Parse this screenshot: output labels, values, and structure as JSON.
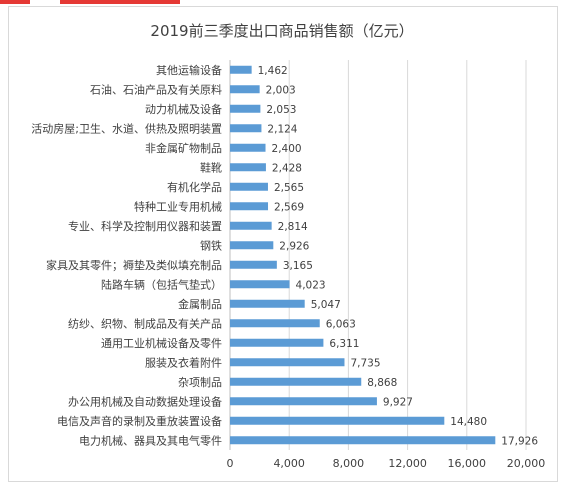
{
  "chart_data": {
    "type": "bar",
    "orientation": "horizontal",
    "title": "2019前三季度出口商品销售额（亿元）",
    "categories": [
      "其他运输设备",
      "石油、石油产品及有关原料",
      "动力机械及设备",
      "活动房屋;卫生、水道、供热及照明装置",
      "非金属矿物制品",
      "鞋靴",
      "有机化学品",
      "特种工业专用机械",
      "专业、科学及控制用仪器和装置",
      "钢铁",
      "家具及其零件；褥垫及类似填充制品",
      "陆路车辆（包括气垫式）",
      "金属制品",
      "纺纱、织物、制成品及有关产品",
      "通用工业机械设备及零件",
      "服装及衣着附件",
      "杂项制品",
      "办公用机械及自动数据处理设备",
      "电信及声音的录制及重放装置设备",
      "电力机械、器具及其电气零件"
    ],
    "values": [
      1462,
      2003,
      2053,
      2124,
      2400,
      2428,
      2565,
      2569,
      2814,
      2926,
      3165,
      4023,
      5047,
      6063,
      6311,
      7735,
      8868,
      9927,
      14480,
      17926
    ],
    "value_labels": [
      "1,462",
      "2,003",
      "2,053",
      "2,124",
      "2,400",
      "2,428",
      "2,565",
      "2,569",
      "2,814",
      "2,926",
      "3,165",
      "4,023",
      "5,047",
      "6,063",
      "6,311",
      "7,735",
      "8,868",
      "9,927",
      "14,480",
      "17,926"
    ],
    "x_ticks": [
      "0",
      "4,000",
      "8,000",
      "12,000",
      "16,000",
      "20,000"
    ],
    "xlim": [
      0,
      20000
    ],
    "grid": true,
    "bar_color": "#5b9bd5"
  }
}
